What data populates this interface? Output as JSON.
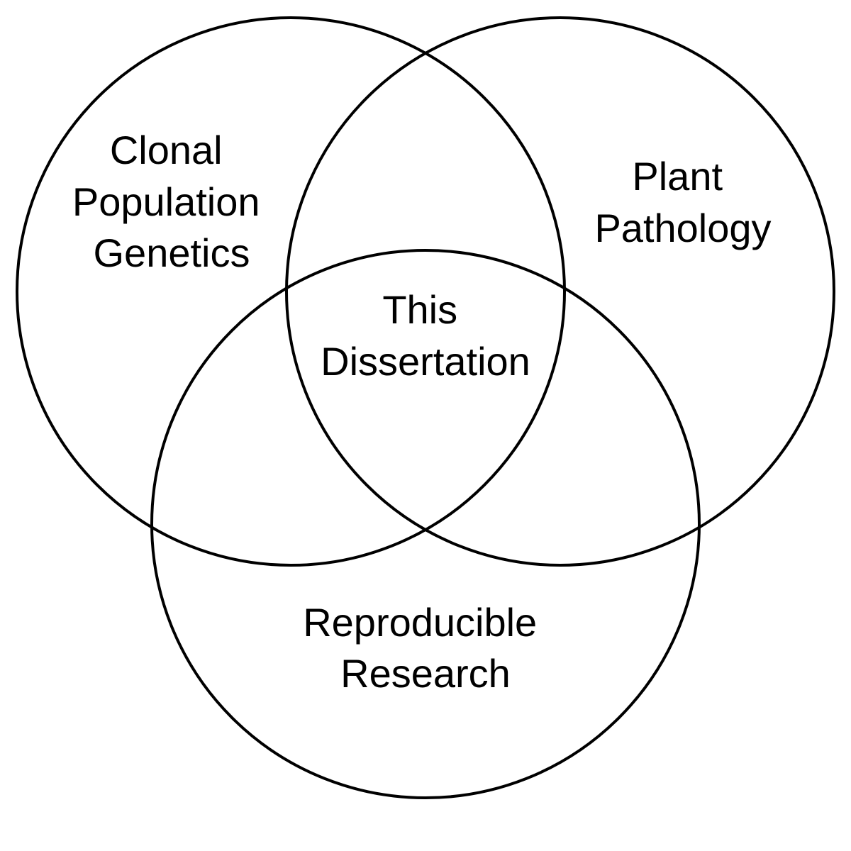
{
  "diagram": {
    "type": "venn",
    "colors": {
      "stroke": "#000000",
      "text": "#000000",
      "background": "#ffffff"
    },
    "sets": [
      {
        "id": "clonal",
        "lines": [
          "Clonal",
          "Population",
          "Genetics"
        ]
      },
      {
        "id": "plant",
        "lines": [
          "Plant",
          "Pathology"
        ]
      },
      {
        "id": "repro",
        "lines": [
          "Reproducible",
          "Research"
        ]
      }
    ],
    "center": {
      "lines": [
        "This",
        "Dissertation"
      ]
    }
  }
}
